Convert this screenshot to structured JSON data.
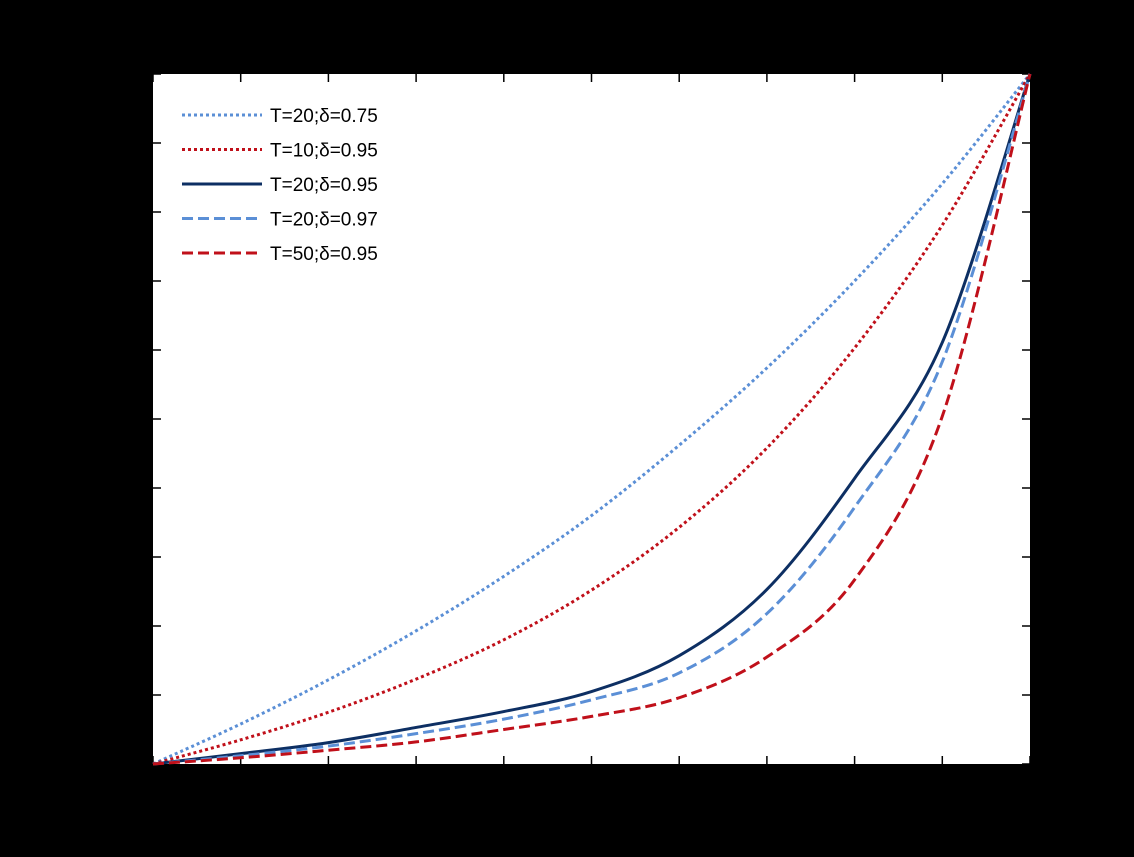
{
  "chart_data": {
    "type": "line",
    "title": "",
    "xlabel": "",
    "ylabel": "",
    "xlim": [
      0,
      1
    ],
    "ylim": [
      0,
      1
    ],
    "x_ticks": [
      0,
      0.1,
      0.2,
      0.3,
      0.4,
      0.5,
      0.6,
      0.7,
      0.8,
      0.9,
      1.0
    ],
    "y_ticks": [
      0,
      0.1,
      0.2,
      0.3,
      0.4,
      0.5,
      0.6,
      0.7,
      0.8,
      0.9,
      1.0
    ],
    "tick_labels_visible": false,
    "grid": false,
    "legend_position": "top-left",
    "colors": {
      "background": "#000000",
      "plot_area": "#ffffff",
      "axes": "#000000",
      "light_blue": "#5b8fd6",
      "red": "#c0101a",
      "dark_blue": "#0d2f63"
    },
    "series": [
      {
        "name": "T=20;δ=0.75",
        "color": "#5b8fd6",
        "dash": "dotted",
        "x": [
          0,
          0.1,
          0.2,
          0.3,
          0.4,
          0.5,
          0.6,
          0.7,
          0.8,
          0.9,
          1.0
        ],
        "y": [
          0,
          0.058,
          0.122,
          0.193,
          0.272,
          0.36,
          0.462,
          0.574,
          0.7,
          0.841,
          1.0
        ]
      },
      {
        "name": "T=10;δ=0.95",
        "color": "#c0101a",
        "dash": "dotted",
        "x": [
          0,
          0.1,
          0.2,
          0.3,
          0.4,
          0.5,
          0.6,
          0.7,
          0.8,
          0.9,
          1.0
        ],
        "y": [
          0,
          0.035,
          0.075,
          0.123,
          0.18,
          0.252,
          0.343,
          0.458,
          0.603,
          0.781,
          1.0
        ]
      },
      {
        "name": "T=20;δ=0.95",
        "color": "#0d2f63",
        "dash": "solid",
        "x": [
          0,
          0.1,
          0.2,
          0.3,
          0.4,
          0.5,
          0.6,
          0.7,
          0.8,
          0.9,
          1.0
        ],
        "y": [
          0,
          0.015,
          0.031,
          0.053,
          0.076,
          0.105,
          0.157,
          0.253,
          0.414,
          0.611,
          1.0
        ]
      },
      {
        "name": "T=20;δ=0.97",
        "color": "#5b8fd6",
        "dash": "dashed",
        "x": [
          0,
          0.1,
          0.2,
          0.3,
          0.4,
          0.5,
          0.6,
          0.7,
          0.8,
          0.9,
          1.0
        ],
        "y": [
          0,
          0.012,
          0.026,
          0.044,
          0.065,
          0.093,
          0.132,
          0.218,
          0.372,
          0.583,
          1.0
        ]
      },
      {
        "name": "T=50;δ=0.95",
        "color": "#c0101a",
        "dash": "dashed",
        "x": [
          0,
          0.1,
          0.2,
          0.3,
          0.4,
          0.5,
          0.6,
          0.7,
          0.8,
          0.9,
          1.0
        ],
        "y": [
          0,
          0.009,
          0.02,
          0.032,
          0.05,
          0.069,
          0.096,
          0.155,
          0.267,
          0.504,
          1.0
        ]
      }
    ]
  }
}
